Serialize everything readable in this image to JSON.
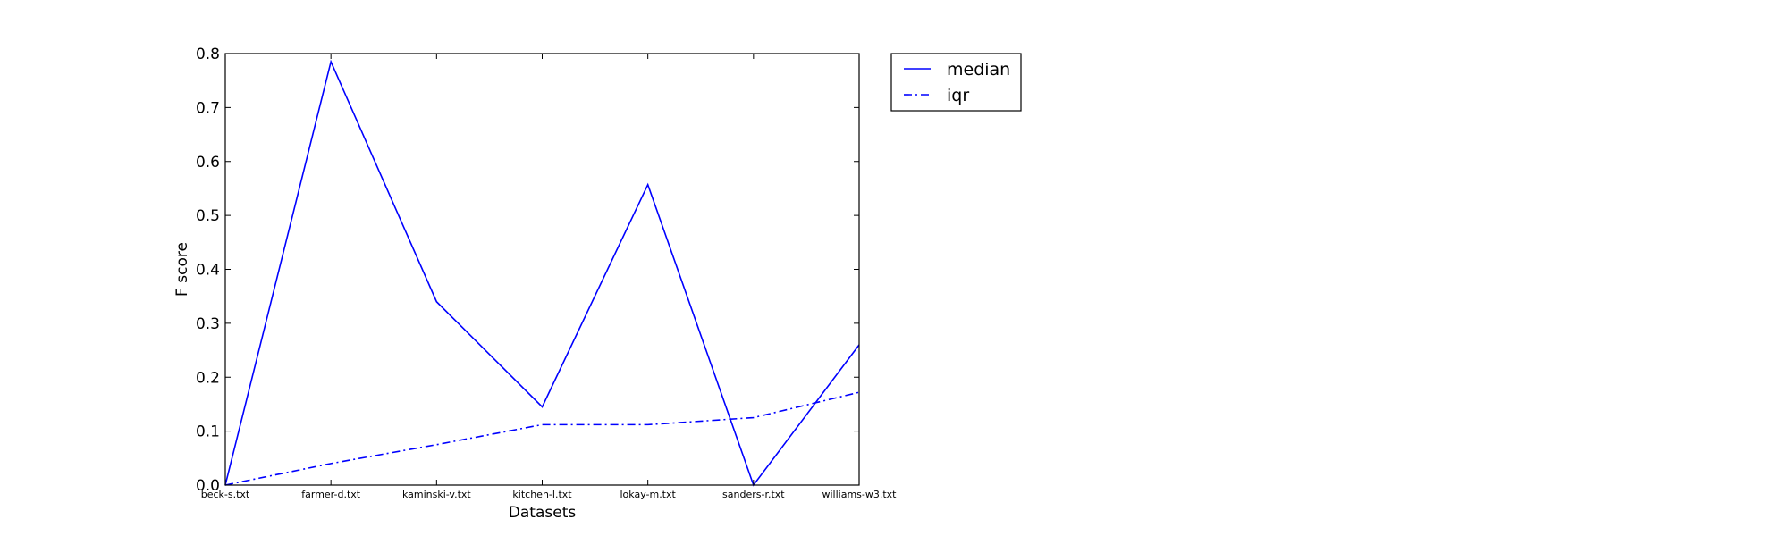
{
  "chart_data": {
    "type": "line",
    "title": "",
    "xlabel": "Datasets",
    "ylabel": "F score",
    "categories": [
      "beck-s.txt",
      "farmer-d.txt",
      "kaminski-v.txt",
      "kitchen-l.txt",
      "lokay-m.txt",
      "sanders-r.txt",
      "williams-w3.txt"
    ],
    "ylim": [
      0,
      0.8
    ],
    "yticks": [
      "0.0",
      "0.1",
      "0.2",
      "0.3",
      "0.4",
      "0.5",
      "0.6",
      "0.7",
      "0.8"
    ],
    "grid": false,
    "legend_position": "outside-top-right",
    "series": [
      {
        "name": "median",
        "style": "solid",
        "color": "#0000ff",
        "values": [
          0.0,
          0.785,
          0.34,
          0.145,
          0.557,
          0.0,
          0.26
        ]
      },
      {
        "name": "iqr",
        "style": "dashdot",
        "color": "#0000ff",
        "values": [
          0.0,
          0.04,
          0.075,
          0.112,
          0.112,
          0.125,
          0.172
        ]
      }
    ]
  }
}
